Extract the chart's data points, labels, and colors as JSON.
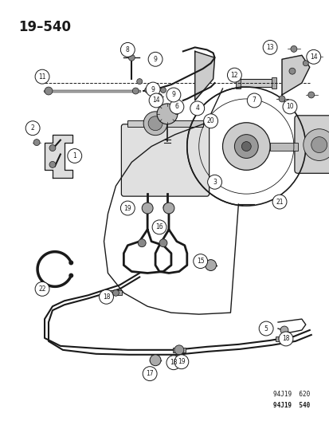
{
  "title": "19–540",
  "background_color": "#ffffff",
  "line_color": "#1a1a1a",
  "footer_text1": "94J19  620",
  "footer_text2": "94J19  540",
  "fig_width": 4.14,
  "fig_height": 5.33,
  "dpi": 100
}
